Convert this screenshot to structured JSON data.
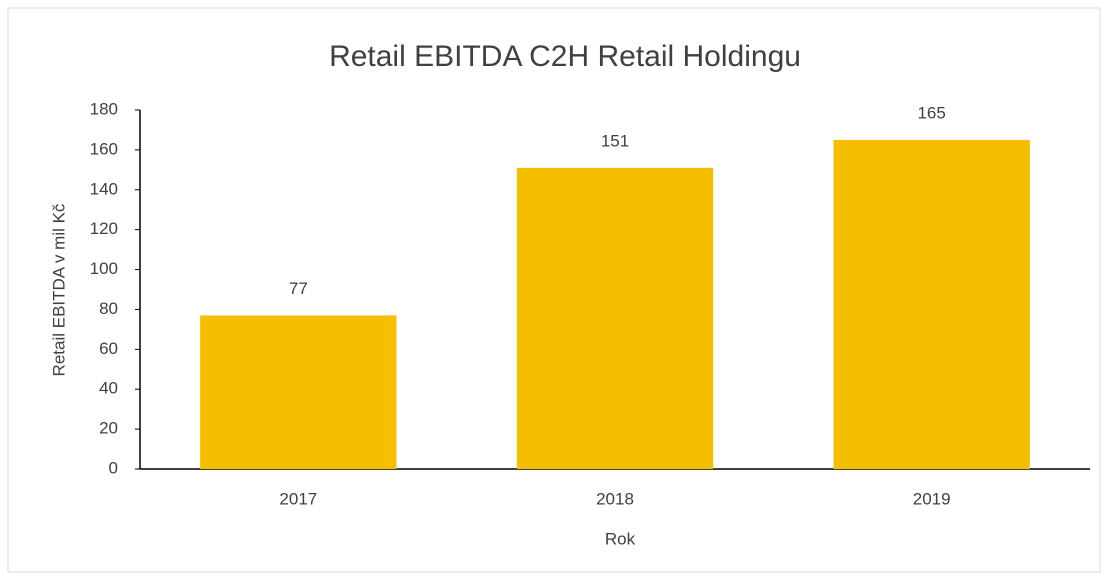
{
  "chart_data": {
    "type": "bar",
    "title": "Retail EBITDA C2H Retail Holdingu",
    "x_label": "Rok",
    "y_label": "Retail EBITDA v mil Kč",
    "categories": [
      "2017",
      "2018",
      "2019"
    ],
    "values": [
      77,
      151,
      165
    ],
    "color": "#f5bf00",
    "ylim": [
      0,
      180
    ],
    "yticks": [
      0,
      20,
      40,
      60,
      80,
      100,
      120,
      140,
      160,
      180
    ],
    "grid": false
  }
}
